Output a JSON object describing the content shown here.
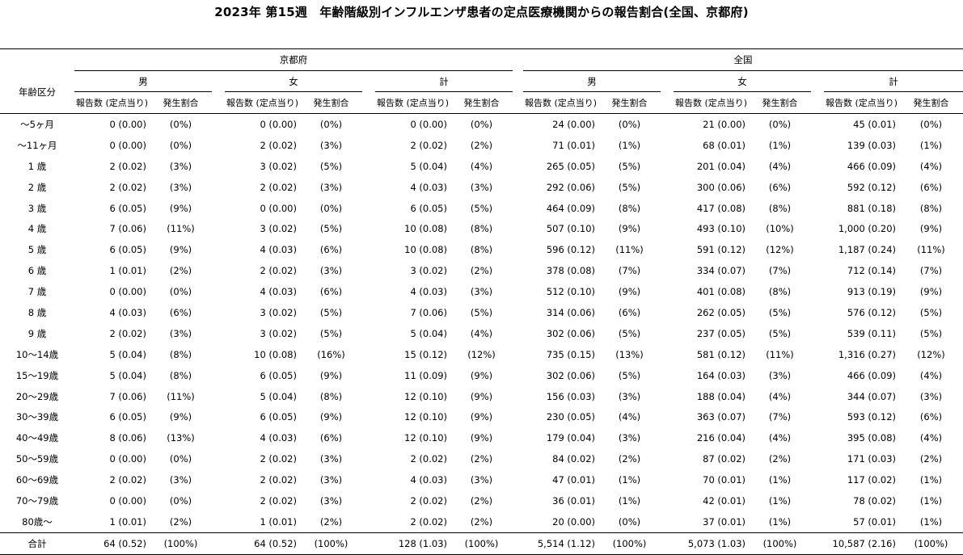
{
  "title": "2023年 第15週　年齢階級別インフルエンザ患者の定点医療機関からの報告割合(全国、京都府)",
  "header": {
    "age_col": "年齢区分",
    "regions": [
      "京都府",
      "全国"
    ],
    "sexes": [
      "男",
      "女",
      "計"
    ],
    "sub_report": "報告数 (定点当り)",
    "sub_rate": "発生割合"
  },
  "rows": [
    {
      "age": "～5ヶ月",
      "k_m": "0 (0.00)",
      "k_m_p": "(0%)",
      "k_f": "0 (0.00)",
      "k_f_p": "(0%)",
      "k_t": "0 (0.00)",
      "k_t_p": "(0%)",
      "z_m": "24 (0.00)",
      "z_m_p": "(0%)",
      "z_f": "21 (0.00)",
      "z_f_p": "(0%)",
      "z_t": "45 (0.01)",
      "z_t_p": "(0%)"
    },
    {
      "age": "～11ヶ月",
      "k_m": "0 (0.00)",
      "k_m_p": "(0%)",
      "k_f": "2 (0.02)",
      "k_f_p": "(3%)",
      "k_t": "2 (0.02)",
      "k_t_p": "(2%)",
      "z_m": "71 (0.01)",
      "z_m_p": "(1%)",
      "z_f": "68 (0.01)",
      "z_f_p": "(1%)",
      "z_t": "139 (0.03)",
      "z_t_p": "(1%)"
    },
    {
      "age": "1 歳",
      "k_m": "2 (0.02)",
      "k_m_p": "(3%)",
      "k_f": "3 (0.02)",
      "k_f_p": "(5%)",
      "k_t": "5 (0.04)",
      "k_t_p": "(4%)",
      "z_m": "265 (0.05)",
      "z_m_p": "(5%)",
      "z_f": "201 (0.04)",
      "z_f_p": "(4%)",
      "z_t": "466 (0.09)",
      "z_t_p": "(4%)"
    },
    {
      "age": "2 歳",
      "k_m": "2 (0.02)",
      "k_m_p": "(3%)",
      "k_f": "2 (0.02)",
      "k_f_p": "(3%)",
      "k_t": "4 (0.03)",
      "k_t_p": "(3%)",
      "z_m": "292 (0.06)",
      "z_m_p": "(5%)",
      "z_f": "300 (0.06)",
      "z_f_p": "(6%)",
      "z_t": "592 (0.12)",
      "z_t_p": "(6%)"
    },
    {
      "age": "3 歳",
      "k_m": "6 (0.05)",
      "k_m_p": "(9%)",
      "k_f": "0 (0.00)",
      "k_f_p": "(0%)",
      "k_t": "6 (0.05)",
      "k_t_p": "(5%)",
      "z_m": "464 (0.09)",
      "z_m_p": "(8%)",
      "z_f": "417 (0.08)",
      "z_f_p": "(8%)",
      "z_t": "881 (0.18)",
      "z_t_p": "(8%)"
    },
    {
      "age": "4 歳",
      "k_m": "7 (0.06)",
      "k_m_p": "(11%)",
      "k_f": "3 (0.02)",
      "k_f_p": "(5%)",
      "k_t": "10 (0.08)",
      "k_t_p": "(8%)",
      "z_m": "507 (0.10)",
      "z_m_p": "(9%)",
      "z_f": "493 (0.10)",
      "z_f_p": "(10%)",
      "z_t": "1,000 (0.20)",
      "z_t_p": "(9%)"
    },
    {
      "age": "5 歳",
      "k_m": "6 (0.05)",
      "k_m_p": "(9%)",
      "k_f": "4 (0.03)",
      "k_f_p": "(6%)",
      "k_t": "10 (0.08)",
      "k_t_p": "(8%)",
      "z_m": "596 (0.12)",
      "z_m_p": "(11%)",
      "z_f": "591 (0.12)",
      "z_f_p": "(12%)",
      "z_t": "1,187 (0.24)",
      "z_t_p": "(11%)"
    },
    {
      "age": "6 歳",
      "k_m": "1 (0.01)",
      "k_m_p": "(2%)",
      "k_f": "2 (0.02)",
      "k_f_p": "(3%)",
      "k_t": "3 (0.02)",
      "k_t_p": "(2%)",
      "z_m": "378 (0.08)",
      "z_m_p": "(7%)",
      "z_f": "334 (0.07)",
      "z_f_p": "(7%)",
      "z_t": "712 (0.14)",
      "z_t_p": "(7%)"
    },
    {
      "age": "7 歳",
      "k_m": "0 (0.00)",
      "k_m_p": "(0%)",
      "k_f": "4 (0.03)",
      "k_f_p": "(6%)",
      "k_t": "4 (0.03)",
      "k_t_p": "(3%)",
      "z_m": "512 (0.10)",
      "z_m_p": "(9%)",
      "z_f": "401 (0.08)",
      "z_f_p": "(8%)",
      "z_t": "913 (0.19)",
      "z_t_p": "(9%)"
    },
    {
      "age": "8 歳",
      "k_m": "4 (0.03)",
      "k_m_p": "(6%)",
      "k_f": "3 (0.02)",
      "k_f_p": "(5%)",
      "k_t": "7 (0.06)",
      "k_t_p": "(5%)",
      "z_m": "314 (0.06)",
      "z_m_p": "(6%)",
      "z_f": "262 (0.05)",
      "z_f_p": "(5%)",
      "z_t": "576 (0.12)",
      "z_t_p": "(5%)"
    },
    {
      "age": "9 歳",
      "k_m": "2 (0.02)",
      "k_m_p": "(3%)",
      "k_f": "3 (0.02)",
      "k_f_p": "(5%)",
      "k_t": "5 (0.04)",
      "k_t_p": "(4%)",
      "z_m": "302 (0.06)",
      "z_m_p": "(5%)",
      "z_f": "237 (0.05)",
      "z_f_p": "(5%)",
      "z_t": "539 (0.11)",
      "z_t_p": "(5%)"
    },
    {
      "age": "10～14歳",
      "k_m": "5 (0.04)",
      "k_m_p": "(8%)",
      "k_f": "10 (0.08)",
      "k_f_p": "(16%)",
      "k_t": "15 (0.12)",
      "k_t_p": "(12%)",
      "z_m": "735 (0.15)",
      "z_m_p": "(13%)",
      "z_f": "581 (0.12)",
      "z_f_p": "(11%)",
      "z_t": "1,316 (0.27)",
      "z_t_p": "(12%)"
    },
    {
      "age": "15～19歳",
      "k_m": "5 (0.04)",
      "k_m_p": "(8%)",
      "k_f": "6 (0.05)",
      "k_f_p": "(9%)",
      "k_t": "11 (0.09)",
      "k_t_p": "(9%)",
      "z_m": "302 (0.06)",
      "z_m_p": "(5%)",
      "z_f": "164 (0.03)",
      "z_f_p": "(3%)",
      "z_t": "466 (0.09)",
      "z_t_p": "(4%)"
    },
    {
      "age": "20～29歳",
      "k_m": "7 (0.06)",
      "k_m_p": "(11%)",
      "k_f": "5 (0.04)",
      "k_f_p": "(8%)",
      "k_t": "12 (0.10)",
      "k_t_p": "(9%)",
      "z_m": "156 (0.03)",
      "z_m_p": "(3%)",
      "z_f": "188 (0.04)",
      "z_f_p": "(4%)",
      "z_t": "344 (0.07)",
      "z_t_p": "(3%)"
    },
    {
      "age": "30～39歳",
      "k_m": "6 (0.05)",
      "k_m_p": "(9%)",
      "k_f": "6 (0.05)",
      "k_f_p": "(9%)",
      "k_t": "12 (0.10)",
      "k_t_p": "(9%)",
      "z_m": "230 (0.05)",
      "z_m_p": "(4%)",
      "z_f": "363 (0.07)",
      "z_f_p": "(7%)",
      "z_t": "593 (0.12)",
      "z_t_p": "(6%)"
    },
    {
      "age": "40～49歳",
      "k_m": "8 (0.06)",
      "k_m_p": "(13%)",
      "k_f": "4 (0.03)",
      "k_f_p": "(6%)",
      "k_t": "12 (0.10)",
      "k_t_p": "(9%)",
      "z_m": "179 (0.04)",
      "z_m_p": "(3%)",
      "z_f": "216 (0.04)",
      "z_f_p": "(4%)",
      "z_t": "395 (0.08)",
      "z_t_p": "(4%)"
    },
    {
      "age": "50～59歳",
      "k_m": "0 (0.00)",
      "k_m_p": "(0%)",
      "k_f": "2 (0.02)",
      "k_f_p": "(3%)",
      "k_t": "2 (0.02)",
      "k_t_p": "(2%)",
      "z_m": "84 (0.02)",
      "z_m_p": "(2%)",
      "z_f": "87 (0.02)",
      "z_f_p": "(2%)",
      "z_t": "171 (0.03)",
      "z_t_p": "(2%)"
    },
    {
      "age": "60～69歳",
      "k_m": "2 (0.02)",
      "k_m_p": "(3%)",
      "k_f": "2 (0.02)",
      "k_f_p": "(3%)",
      "k_t": "4 (0.03)",
      "k_t_p": "(3%)",
      "z_m": "47 (0.01)",
      "z_m_p": "(1%)",
      "z_f": "70 (0.01)",
      "z_f_p": "(1%)",
      "z_t": "117 (0.02)",
      "z_t_p": "(1%)"
    },
    {
      "age": "70～79歳",
      "k_m": "0 (0.00)",
      "k_m_p": "(0%)",
      "k_f": "2 (0.02)",
      "k_f_p": "(3%)",
      "k_t": "2 (0.02)",
      "k_t_p": "(2%)",
      "z_m": "36 (0.01)",
      "z_m_p": "(1%)",
      "z_f": "42 (0.01)",
      "z_f_p": "(1%)",
      "z_t": "78 (0.02)",
      "z_t_p": "(1%)"
    },
    {
      "age": "80歳～",
      "k_m": "1 (0.01)",
      "k_m_p": "(2%)",
      "k_f": "1 (0.01)",
      "k_f_p": "(2%)",
      "k_t": "2 (0.02)",
      "k_t_p": "(2%)",
      "z_m": "20 (0.00)",
      "z_m_p": "(0%)",
      "z_f": "37 (0.01)",
      "z_f_p": "(1%)",
      "z_t": "57 (0.01)",
      "z_t_p": "(1%)"
    }
  ],
  "total": {
    "age": "合計",
    "k_m": "64 (0.52)",
    "k_m_p": "(100%)",
    "k_f": "64 (0.52)",
    "k_f_p": "(100%)",
    "k_t": "128 (1.03)",
    "k_t_p": "(100%)",
    "z_m": "5,514 (1.12)",
    "z_m_p": "(100%)",
    "z_f": "5,073 (1.03)",
    "z_f_p": "(100%)",
    "z_t": "10,587 (2.16)",
    "z_t_p": "(100%)"
  }
}
